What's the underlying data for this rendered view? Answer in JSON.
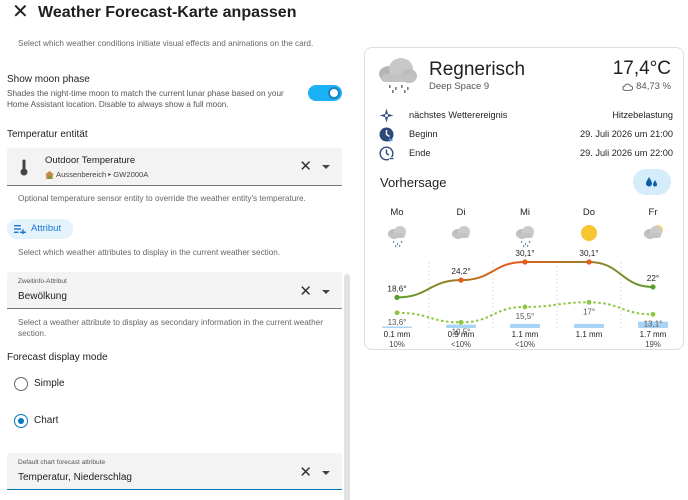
{
  "header": {
    "title": "Weather Forecast-Karte anpassen",
    "close_icon": "close-icon"
  },
  "editor": {
    "effects_hint": "Select which weather conditions initiate visual effects and animations on the card.",
    "moon": {
      "title": "Show moon phase",
      "description": "Shades the night-time moon to match the current lunar phase based on your Home Assistant location. Disable to always show a full moon.",
      "enabled": true
    },
    "temperature_entity": {
      "label": "Temperatur entität",
      "name": "Outdoor Temperature",
      "area": "Aussenbereich",
      "device": "GW2000A",
      "hint": "Optional temperature sensor entity to override the weather entity's temperature."
    },
    "attribute_chip": "Attribut",
    "attribute_hint": "Select which weather attributes to display in the current weather section.",
    "secondary_info": {
      "label": "Zweitinfo-Attribut",
      "value": "Bewölkung",
      "hint": "Select a weather attribute to display as secondary information in the current weather section."
    },
    "forecast_mode": {
      "label": "Forecast display mode",
      "options": [
        "Simple",
        "Chart"
      ],
      "selected": "Chart"
    },
    "chart_attribute": {
      "label": "Default chart forecast attribute",
      "value": "Temperatur, Niederschlag"
    }
  },
  "card": {
    "condition": "Regnerisch",
    "location": "Deep Space 9",
    "temperature": "17,4°C",
    "humidity": "84,73 %",
    "events": [
      {
        "icon": "compass-icon",
        "label": "nächstes Wetterereignis",
        "value": "Hitzebelastung"
      },
      {
        "icon": "clock-start-icon",
        "label": "Beginn",
        "value": "29. Juli 2026 um 21:00"
      },
      {
        "icon": "clock-end-icon",
        "label": "Ende",
        "value": "29. Juli 2026 um 22:00"
      }
    ],
    "forecast_title": "Vorhersage",
    "forecast_button_icon": "water-drops-icon",
    "colors": {
      "high": "#e8591a",
      "high_start": "#5a9e2f",
      "low": "#8dc63f",
      "precip": "#a9d4f5",
      "accent": "#03a9f4"
    }
  },
  "chart_data": {
    "type": "line",
    "categories": [
      "Mo",
      "Di",
      "Mi",
      "Do",
      "Fr"
    ],
    "condition_icons": [
      "cloud-rain-icon",
      "cloud-icon",
      "cloud-rain-icon",
      "sun-icon",
      "cloud-sun-icon"
    ],
    "series": [
      {
        "name": "high",
        "values": [
          18.6,
          24.2,
          30.1,
          30.1,
          22
        ],
        "labels": [
          "18,6°",
          "24,2°",
          "30,1°",
          "30,1°",
          "22°"
        ]
      },
      {
        "name": "low",
        "values": [
          13.6,
          10.5,
          15.5,
          17,
          13.1
        ],
        "labels": [
          "13,6°",
          "10,5°",
          "15,5°",
          "17°",
          "13,1°"
        ]
      }
    ],
    "precipitation": [
      "0.1 mm",
      "0.9 mm",
      "1.1 mm",
      "1.1 mm",
      "1.7 mm"
    ],
    "precipitation_values": [
      0.1,
      0.9,
      1.1,
      1.1,
      1.7
    ],
    "precipitation_probability": [
      "10%",
      "<10%",
      "<10%",
      "",
      "19%"
    ],
    "ylim": [
      8,
      34
    ]
  }
}
